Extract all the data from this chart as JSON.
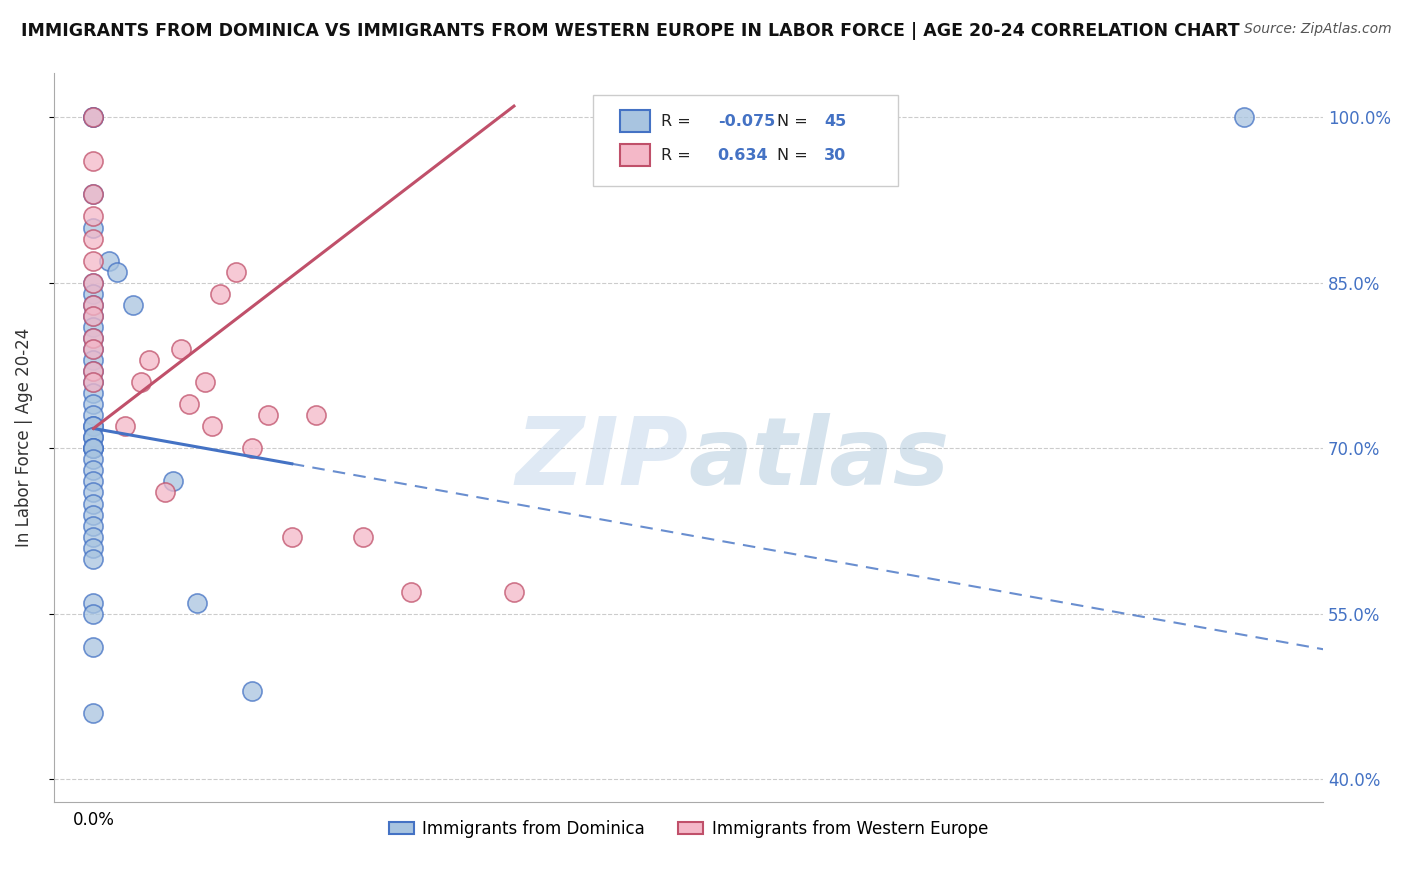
{
  "title": "IMMIGRANTS FROM DOMINICA VS IMMIGRANTS FROM WESTERN EUROPE IN LABOR FORCE | AGE 20-24 CORRELATION CHART",
  "source": "Source: ZipAtlas.com",
  "ylabel": "In Labor Force | Age 20-24",
  "legend_labels": [
    "Immigrants from Dominica",
    "Immigrants from Western Europe"
  ],
  "r_dominica": -0.075,
  "n_dominica": 45,
  "r_western": 0.634,
  "n_western": 30,
  "color_dominica": "#a8c4e0",
  "color_western": "#f4b8c8",
  "line_color_dominica": "#4472c4",
  "line_color_western": "#c0506a",
  "background_color": "#ffffff",
  "watermark_zip": "ZIP",
  "watermark_atlas": "atlas",
  "xlim": [
    -0.005,
    0.155
  ],
  "ylim": [
    0.38,
    1.04
  ],
  "yticks": [
    0.4,
    0.55,
    0.7,
    0.85,
    1.0
  ],
  "ytick_labels": [
    "40.0%",
    "55.0%",
    "70.0%",
    "85.0%",
    "100.0%"
  ],
  "xtick_val": 0.0,
  "xtick_label": "0.0%",
  "dominica_x": [
    0.0,
    0.0,
    0.0,
    0.0,
    0.002,
    0.003,
    0.0,
    0.0,
    0.005,
    0.0,
    0.0,
    0.0,
    0.0,
    0.0,
    0.0,
    0.0,
    0.0,
    0.0,
    0.0,
    0.0,
    0.0,
    0.0,
    0.0,
    0.0,
    0.0,
    0.0,
    0.0,
    0.0,
    0.0,
    0.0,
    0.0,
    0.0,
    0.0,
    0.0,
    0.0,
    0.0,
    0.0,
    0.0,
    0.01,
    0.0,
    0.013,
    0.0,
    0.02,
    0.0,
    0.145
  ],
  "dominica_y": [
    1.0,
    1.0,
    0.93,
    0.9,
    0.87,
    0.86,
    0.85,
    0.84,
    0.83,
    0.83,
    0.82,
    0.81,
    0.8,
    0.79,
    0.78,
    0.77,
    0.76,
    0.75,
    0.74,
    0.73,
    0.72,
    0.72,
    0.71,
    0.71,
    0.7,
    0.7,
    0.7,
    0.69,
    0.68,
    0.67,
    0.66,
    0.65,
    0.64,
    0.63,
    0.62,
    0.61,
    0.6,
    0.56,
    0.67,
    0.55,
    0.56,
    0.52,
    0.48,
    0.46,
    1.0
  ],
  "western_x": [
    0.0,
    0.0,
    0.0,
    0.0,
    0.0,
    0.0,
    0.0,
    0.0,
    0.0,
    0.0,
    0.0,
    0.0,
    0.0,
    0.004,
    0.006,
    0.007,
    0.009,
    0.011,
    0.012,
    0.014,
    0.015,
    0.016,
    0.018,
    0.02,
    0.022,
    0.025,
    0.028,
    0.034,
    0.04,
    0.053
  ],
  "western_y": [
    1.0,
    0.96,
    0.93,
    0.91,
    0.89,
    0.87,
    0.85,
    0.83,
    0.82,
    0.8,
    0.79,
    0.77,
    0.76,
    0.72,
    0.76,
    0.78,
    0.66,
    0.79,
    0.74,
    0.76,
    0.72,
    0.84,
    0.86,
    0.7,
    0.73,
    0.62,
    0.73,
    0.62,
    0.57,
    0.57
  ],
  "trend_dom_x0": 0.0,
  "trend_dom_y0": 0.718,
  "trend_dom_x1": 0.155,
  "trend_dom_y1": 0.518,
  "trend_dom_solid_x1": 0.025,
  "trend_dom_solid_y1": 0.686,
  "trend_west_x0": 0.0,
  "trend_west_y0": 0.718,
  "trend_west_x1": 0.053,
  "trend_west_y1": 1.01
}
